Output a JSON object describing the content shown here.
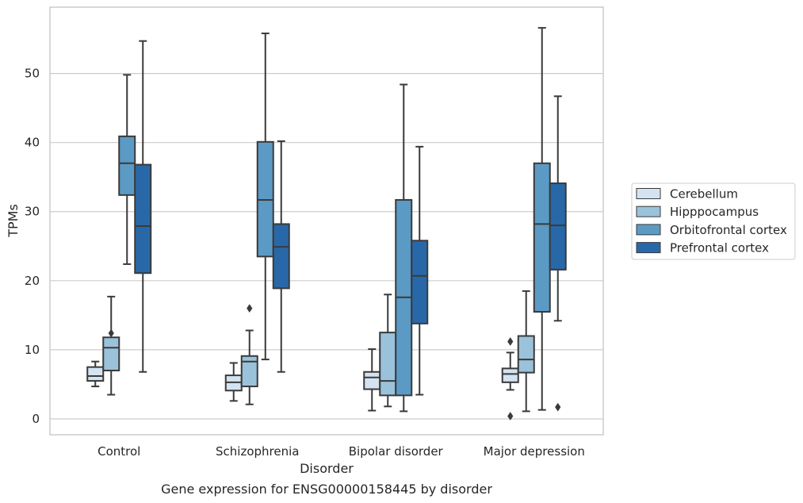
{
  "chart_data": {
    "type": "box",
    "caption": "Gene expression for ENSG00000158445 by disorder",
    "xlabel": "Disorder",
    "ylabel": "TPMs",
    "ylim": [
      -2.3,
      59.6
    ],
    "yticks": [
      0,
      10,
      20,
      30,
      40,
      50
    ],
    "grid": "horizontal",
    "legend_placement": "right",
    "categories": [
      "Control",
      "Schizophrenia",
      "Bipolar disorder",
      "Major depression"
    ],
    "series": [
      {
        "name": "Cerebellum",
        "color": "#d4e3f2",
        "boxes": [
          {
            "whisker_low": 4.7,
            "q1": 5.5,
            "median": 6.2,
            "q3": 7.5,
            "whisker_high": 8.3,
            "outliers": []
          },
          {
            "whisker_low": 2.6,
            "q1": 4.1,
            "median": 5.3,
            "q3": 6.3,
            "whisker_high": 8.1,
            "outliers": []
          },
          {
            "whisker_low": 1.2,
            "q1": 4.3,
            "median": 6.0,
            "q3": 6.8,
            "whisker_high": 10.1,
            "outliers": []
          },
          {
            "whisker_low": 4.2,
            "q1": 5.3,
            "median": 6.5,
            "q3": 7.3,
            "whisker_high": 9.6,
            "outliers": [
              11.2,
              0.4
            ]
          }
        ]
      },
      {
        "name": "Hipppocampus",
        "color": "#9bc2db",
        "boxes": [
          {
            "whisker_low": 3.5,
            "q1": 7.0,
            "median": 10.3,
            "q3": 11.8,
            "whisker_high": 17.7,
            "outliers": [
              12.4
            ]
          },
          {
            "whisker_low": 2.1,
            "q1": 4.7,
            "median": 8.3,
            "q3": 9.1,
            "whisker_high": 12.8,
            "outliers": [
              16.0
            ]
          },
          {
            "whisker_low": 1.8,
            "q1": 3.4,
            "median": 5.5,
            "q3": 12.5,
            "whisker_high": 18.0,
            "outliers": []
          },
          {
            "whisker_low": 1.1,
            "q1": 6.7,
            "median": 8.6,
            "q3": 12.0,
            "whisker_high": 18.5,
            "outliers": []
          }
        ]
      },
      {
        "name": "Orbitofrontal cortex",
        "color": "#5b9ac5",
        "boxes": [
          {
            "whisker_low": 22.4,
            "q1": 32.4,
            "median": 37.0,
            "q3": 40.9,
            "whisker_high": 49.8,
            "outliers": []
          },
          {
            "whisker_low": 8.6,
            "q1": 23.5,
            "median": 31.7,
            "q3": 40.1,
            "whisker_high": 55.8,
            "outliers": []
          },
          {
            "whisker_low": 1.1,
            "q1": 3.4,
            "median": 17.6,
            "q3": 31.7,
            "whisker_high": 48.4,
            "outliers": []
          },
          {
            "whisker_low": 1.3,
            "q1": 15.5,
            "median": 28.2,
            "q3": 37.0,
            "whisker_high": 56.6,
            "outliers": []
          }
        ]
      },
      {
        "name": "Prefrontal cortex",
        "color": "#2868a8",
        "boxes": [
          {
            "whisker_low": 6.8,
            "q1": 21.1,
            "median": 27.9,
            "q3": 36.8,
            "whisker_high": 54.7,
            "outliers": []
          },
          {
            "whisker_low": 6.8,
            "q1": 18.9,
            "median": 24.9,
            "q3": 28.2,
            "whisker_high": 40.2,
            "outliers": []
          },
          {
            "whisker_low": 3.5,
            "q1": 13.8,
            "median": 20.7,
            "q3": 25.8,
            "whisker_high": 39.4,
            "outliers": []
          },
          {
            "whisker_low": 14.2,
            "q1": 21.6,
            "median": 28.0,
            "q3": 34.1,
            "whisker_high": 46.7,
            "outliers": [
              1.7
            ]
          }
        ]
      }
    ]
  }
}
